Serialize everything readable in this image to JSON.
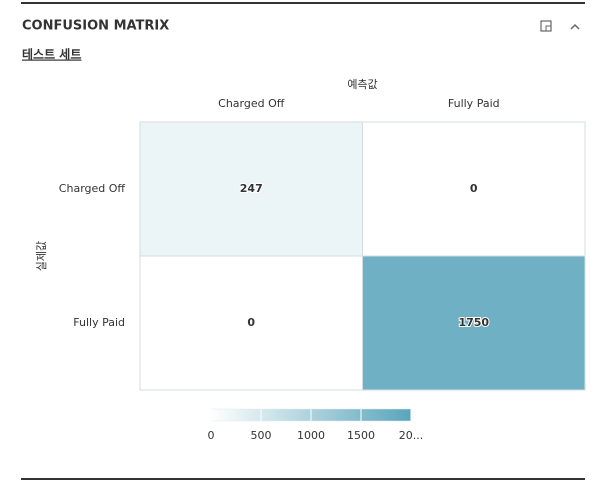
{
  "chart_data": {
    "type": "heatmap",
    "title": "CONFUSION MATRIX",
    "subtitle": "테스트 세트",
    "x_label": "예측값",
    "y_label": "실제값",
    "x_categories": [
      "Charged Off",
      "Fully Paid"
    ],
    "y_categories": [
      "Charged Off",
      "Fully Paid"
    ],
    "values": [
      [
        247,
        0
      ],
      [
        0,
        1750
      ]
    ],
    "colormap": [
      "#ffffff",
      "#5aa5bb"
    ],
    "clim": [
      0,
      2000
    ],
    "cticks": [
      0,
      500,
      1000,
      1500,
      {
        "value": 2000,
        "label": "20..."
      }
    ]
  }
}
